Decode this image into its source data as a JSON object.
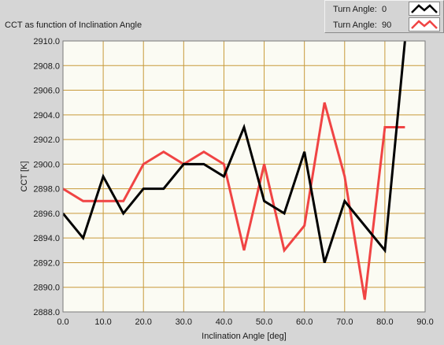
{
  "window": {
    "title": "CCT as function of Inclination Angle"
  },
  "legend": [
    {
      "label": "Turn Angle:",
      "value": "0",
      "color": "#000000"
    },
    {
      "label": "Turn Angle:",
      "value": "90",
      "color": "#f04444"
    }
  ],
  "chart_data": {
    "type": "line",
    "title": "CCT as function of Inclination Angle",
    "xlabel": "Inclination Angle [deg]",
    "ylabel": "CCT [K]",
    "xlim": [
      0,
      90
    ],
    "ylim": [
      2888,
      2910
    ],
    "grid": true,
    "grid_color": "#c89a3a",
    "plot_background": "#fbfbf3",
    "legend_position": "top-right",
    "x_ticks": [
      "0.0",
      "10.0",
      "20.0",
      "30.0",
      "40.0",
      "50.0",
      "60.0",
      "70.0",
      "80.0",
      "90.0"
    ],
    "y_ticks": [
      "2888.0",
      "2890.0",
      "2892.0",
      "2894.0",
      "2896.0",
      "2898.0",
      "2900.0",
      "2902.0",
      "2904.0",
      "2906.0",
      "2908.0",
      "2910.0"
    ],
    "series": [
      {
        "legend_label": "Turn Angle:",
        "legend_value": "0",
        "color": "#000000",
        "x": [
          0,
          5,
          10,
          15,
          20,
          25,
          30,
          35,
          40,
          45,
          50,
          55,
          60,
          65,
          70,
          75,
          80,
          85
        ],
        "y": [
          2896,
          2894,
          2899,
          2896,
          2898,
          2898,
          2900,
          2900,
          2899,
          2903,
          2897,
          2896,
          2901,
          2892,
          2897,
          2895,
          2893,
          2910
        ]
      },
      {
        "legend_label": "Turn Angle:",
        "legend_value": "90",
        "color": "#f04444",
        "x": [
          0,
          5,
          10,
          15,
          20,
          25,
          30,
          35,
          40,
          45,
          50,
          55,
          60,
          65,
          70,
          75,
          80,
          85
        ],
        "y": [
          2898,
          2897,
          2897,
          2897,
          2900,
          2901,
          2900,
          2901,
          2900,
          2893,
          2900,
          2893,
          2895,
          2905,
          2899,
          2889,
          2903,
          2903
        ]
      }
    ]
  }
}
